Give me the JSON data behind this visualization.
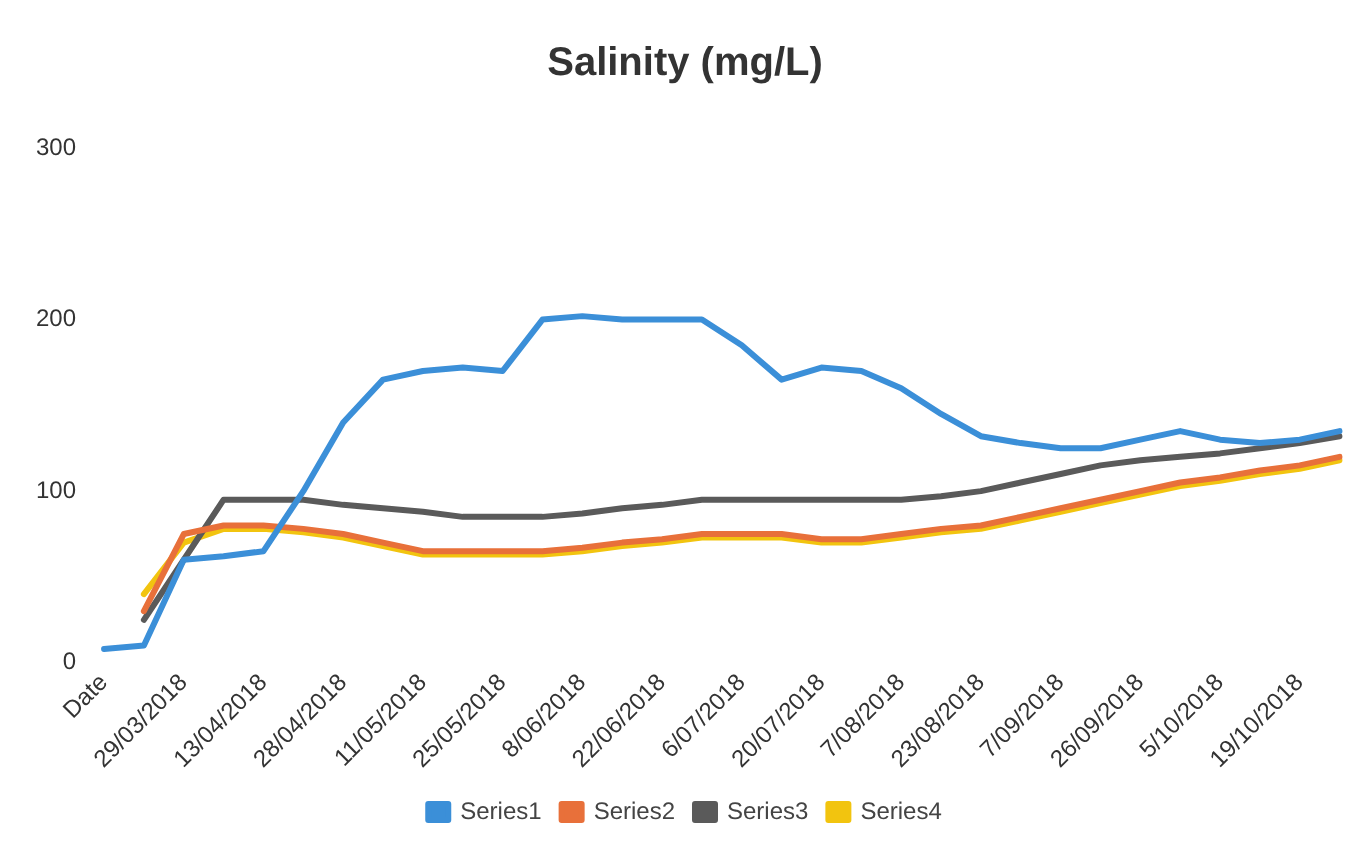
{
  "chart_data": {
    "type": "line",
    "title": "Salinity (mg/L)",
    "categories": [
      "Date",
      null,
      "29/03/2018",
      null,
      "13/04/2018",
      null,
      "28/04/2018",
      null,
      "11/05/2018",
      null,
      "25/05/2018",
      null,
      "8/06/2018",
      null,
      "22/06/2018",
      null,
      "6/07/2018",
      null,
      "20/07/2018",
      null,
      "7/08/2018",
      null,
      "23/08/2018",
      null,
      "7/09/2018",
      null,
      "26/09/2018",
      null,
      "5/10/2018",
      null,
      "19/10/2018",
      null
    ],
    "series": [
      {
        "name": "Series1",
        "color": "#3b8fd8",
        "values": [
          8,
          10,
          60,
          62,
          65,
          100,
          140,
          165,
          170,
          172,
          170,
          200,
          202,
          200,
          200,
          200,
          185,
          165,
          172,
          170,
          160,
          145,
          132,
          128,
          125,
          125,
          130,
          135,
          130,
          128,
          130,
          135
        ]
      },
      {
        "name": "Series2",
        "color": "#e8703a",
        "values": [
          null,
          30,
          75,
          80,
          80,
          78,
          75,
          70,
          65,
          65,
          65,
          65,
          67,
          70,
          72,
          75,
          75,
          75,
          72,
          72,
          75,
          78,
          80,
          85,
          90,
          95,
          100,
          105,
          108,
          112,
          115,
          120
        ]
      },
      {
        "name": "Series3",
        "color": "#5a5a5a",
        "values": [
          null,
          25,
          60,
          95,
          95,
          95,
          92,
          90,
          88,
          85,
          85,
          85,
          87,
          90,
          92,
          95,
          95,
          95,
          95,
          95,
          95,
          97,
          100,
          105,
          110,
          115,
          118,
          120,
          122,
          125,
          128,
          132
        ]
      },
      {
        "name": "Series4",
        "color": "#f2c40f",
        "values": [
          null,
          40,
          70,
          78,
          78,
          76,
          73,
          68,
          63,
          63,
          63,
          63,
          65,
          68,
          70,
          73,
          73,
          73,
          70,
          70,
          73,
          76,
          78,
          83,
          88,
          93,
          98,
          103,
          106,
          110,
          113,
          118
        ]
      }
    ],
    "ylim": [
      0,
      300
    ],
    "yticks": [
      0,
      100,
      200,
      300
    ],
    "grid": false,
    "legend": "bottom",
    "marker": "none",
    "line_style": "solid"
  }
}
